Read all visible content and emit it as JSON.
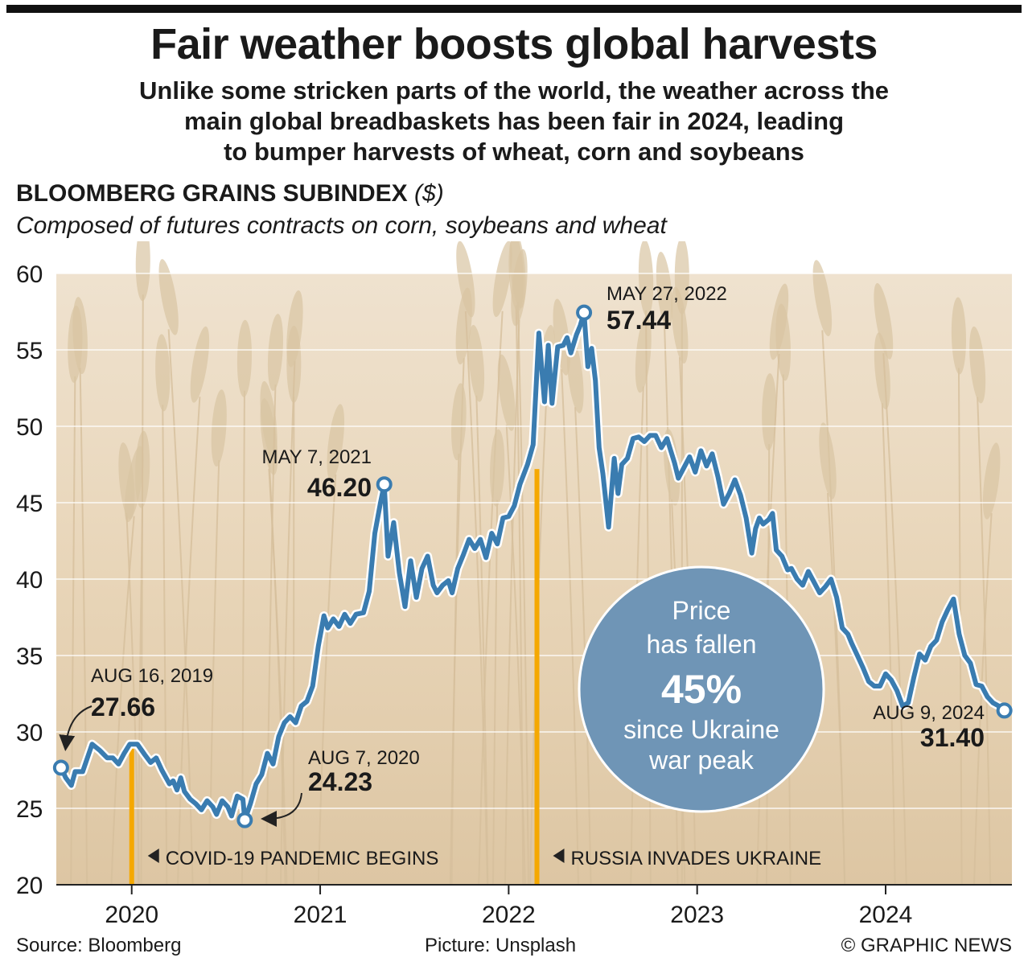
{
  "header": {
    "title": "Fair weather boosts global harvests",
    "subtitle_lines": [
      "Unlike some stricken parts of the world, the weather across the",
      "main global breadbaskets has been fair in 2024, leading",
      "to bumper harvests of wheat, corn and soybeans"
    ],
    "index_title": "BLOOMBERG GRAINS SUBINDEX",
    "index_unit": "($)",
    "index_subtitle": "Composed of futures contracts on corn, soybeans and wheat"
  },
  "footer": {
    "source": "Source: Bloomberg",
    "picture": "Picture: Unsplash",
    "credit": "© GRAPHIC NEWS"
  },
  "colors": {
    "line": "#3a7cb0",
    "event_bar": "#f5a800",
    "bubble": "#6f95b6",
    "background": "#e9d8bd"
  },
  "chart_data": {
    "type": "line",
    "grid": true,
    "ylim": [
      20,
      60
    ],
    "yticks": [
      20,
      25,
      30,
      35,
      40,
      45,
      50,
      55,
      60
    ],
    "xlim": [
      2019.6,
      2024.67
    ],
    "xticks": [
      {
        "x": 2020,
        "label": "2020"
      },
      {
        "x": 2021,
        "label": "2021"
      },
      {
        "x": 2022,
        "label": "2022"
      },
      {
        "x": 2023,
        "label": "2023"
      },
      {
        "x": 2024,
        "label": "2024"
      }
    ],
    "series": [
      {
        "points": [
          [
            2019.625,
            27.66
          ],
          [
            2019.65,
            27.0
          ],
          [
            2019.68,
            26.5
          ],
          [
            2019.7,
            27.4
          ],
          [
            2019.74,
            27.4
          ],
          [
            2019.79,
            29.2
          ],
          [
            2019.83,
            28.8
          ],
          [
            2019.87,
            28.3
          ],
          [
            2019.9,
            28.3
          ],
          [
            2019.93,
            27.9
          ],
          [
            2019.96,
            28.6
          ],
          [
            2019.99,
            29.2
          ],
          [
            2020.03,
            29.2
          ],
          [
            2020.07,
            28.5
          ],
          [
            2020.1,
            28.0
          ],
          [
            2020.13,
            28.3
          ],
          [
            2020.16,
            27.5
          ],
          [
            2020.2,
            26.6
          ],
          [
            2020.22,
            26.8
          ],
          [
            2020.24,
            26.2
          ],
          [
            2020.26,
            27.0
          ],
          [
            2020.28,
            26.1
          ],
          [
            2020.31,
            25.6
          ],
          [
            2020.34,
            25.3
          ],
          [
            2020.37,
            24.9
          ],
          [
            2020.4,
            25.5
          ],
          [
            2020.43,
            25.1
          ],
          [
            2020.45,
            24.6
          ],
          [
            2020.48,
            25.5
          ],
          [
            2020.51,
            25.1
          ],
          [
            2020.53,
            24.5
          ],
          [
            2020.56,
            25.8
          ],
          [
            2020.59,
            25.6
          ],
          [
            2020.6,
            24.23
          ],
          [
            2020.63,
            25.3
          ],
          [
            2020.66,
            26.6
          ],
          [
            2020.69,
            27.2
          ],
          [
            2020.72,
            28.6
          ],
          [
            2020.75,
            27.9
          ],
          [
            2020.78,
            29.7
          ],
          [
            2020.81,
            30.6
          ],
          [
            2020.84,
            31.0
          ],
          [
            2020.87,
            30.6
          ],
          [
            2020.9,
            31.7
          ],
          [
            2020.93,
            32.0
          ],
          [
            2020.96,
            33.0
          ],
          [
            2020.99,
            35.6
          ],
          [
            2021.02,
            37.6
          ],
          [
            2021.04,
            36.8
          ],
          [
            2021.07,
            37.4
          ],
          [
            2021.1,
            36.9
          ],
          [
            2021.13,
            37.7
          ],
          [
            2021.16,
            37.1
          ],
          [
            2021.19,
            37.7
          ],
          [
            2021.23,
            37.8
          ],
          [
            2021.26,
            39.2
          ],
          [
            2021.29,
            43.0
          ],
          [
            2021.32,
            45.0
          ],
          [
            2021.34,
            46.2
          ],
          [
            2021.36,
            41.5
          ],
          [
            2021.39,
            43.7
          ],
          [
            2021.42,
            40.4
          ],
          [
            2021.45,
            38.2
          ],
          [
            2021.48,
            41.2
          ],
          [
            2021.51,
            38.8
          ],
          [
            2021.54,
            40.7
          ],
          [
            2021.57,
            41.5
          ],
          [
            2021.6,
            39.6
          ],
          [
            2021.62,
            39.1
          ],
          [
            2021.65,
            39.6
          ],
          [
            2021.68,
            39.9
          ],
          [
            2021.7,
            39.1
          ],
          [
            2021.73,
            40.7
          ],
          [
            2021.76,
            41.6
          ],
          [
            2021.79,
            42.6
          ],
          [
            2021.82,
            42.0
          ],
          [
            2021.85,
            42.6
          ],
          [
            2021.88,
            41.4
          ],
          [
            2021.91,
            43.0
          ],
          [
            2021.94,
            42.3
          ],
          [
            2021.97,
            44.0
          ],
          [
            2022.0,
            44.1
          ],
          [
            2022.03,
            44.8
          ],
          [
            2022.06,
            46.2
          ],
          [
            2022.1,
            47.5
          ],
          [
            2022.13,
            48.8
          ],
          [
            2022.16,
            56.1
          ],
          [
            2022.19,
            51.6
          ],
          [
            2022.21,
            55.3
          ],
          [
            2022.23,
            51.5
          ],
          [
            2022.26,
            55.2
          ],
          [
            2022.29,
            55.3
          ],
          [
            2022.31,
            55.8
          ],
          [
            2022.33,
            54.8
          ],
          [
            2022.36,
            56.0
          ],
          [
            2022.38,
            56.6
          ],
          [
            2022.4,
            57.44
          ],
          [
            2022.42,
            53.9
          ],
          [
            2022.44,
            55.1
          ],
          [
            2022.46,
            53.0
          ],
          [
            2022.48,
            48.6
          ],
          [
            2022.5,
            46.9
          ],
          [
            2022.53,
            43.4
          ],
          [
            2022.56,
            47.9
          ],
          [
            2022.58,
            45.6
          ],
          [
            2022.6,
            47.5
          ],
          [
            2022.63,
            47.9
          ],
          [
            2022.66,
            49.2
          ],
          [
            2022.69,
            49.3
          ],
          [
            2022.72,
            49.0
          ],
          [
            2022.75,
            49.4
          ],
          [
            2022.78,
            49.4
          ],
          [
            2022.81,
            48.6
          ],
          [
            2022.84,
            49.2
          ],
          [
            2022.88,
            47.6
          ],
          [
            2022.9,
            46.6
          ],
          [
            2022.93,
            47.3
          ],
          [
            2022.96,
            48.0
          ],
          [
            2022.99,
            47.0
          ],
          [
            2023.02,
            48.4
          ],
          [
            2023.05,
            47.4
          ],
          [
            2023.08,
            48.2
          ],
          [
            2023.11,
            46.7
          ],
          [
            2023.14,
            44.9
          ],
          [
            2023.17,
            45.6
          ],
          [
            2023.2,
            46.5
          ],
          [
            2023.23,
            45.5
          ],
          [
            2023.26,
            44.0
          ],
          [
            2023.29,
            41.7
          ],
          [
            2023.31,
            43.3
          ],
          [
            2023.33,
            44.0
          ],
          [
            2023.35,
            43.6
          ],
          [
            2023.38,
            43.9
          ],
          [
            2023.4,
            44.3
          ],
          [
            2023.42,
            41.9
          ],
          [
            2023.45,
            41.5
          ],
          [
            2023.48,
            40.6
          ],
          [
            2023.5,
            40.7
          ],
          [
            2023.53,
            40.0
          ],
          [
            2023.56,
            39.6
          ],
          [
            2023.59,
            40.5
          ],
          [
            2023.62,
            39.8
          ],
          [
            2023.65,
            39.1
          ],
          [
            2023.68,
            39.5
          ],
          [
            2023.71,
            40.0
          ],
          [
            2023.74,
            38.8
          ],
          [
            2023.77,
            36.8
          ],
          [
            2023.8,
            36.4
          ],
          [
            2023.82,
            35.8
          ],
          [
            2023.85,
            35.0
          ],
          [
            2023.88,
            34.2
          ],
          [
            2023.91,
            33.3
          ],
          [
            2023.94,
            33.0
          ],
          [
            2023.97,
            33.0
          ],
          [
            2024.0,
            33.8
          ],
          [
            2024.03,
            33.4
          ],
          [
            2024.06,
            32.7
          ],
          [
            2024.09,
            31.7
          ],
          [
            2024.12,
            31.9
          ],
          [
            2024.15,
            33.6
          ],
          [
            2024.18,
            35.1
          ],
          [
            2024.21,
            34.7
          ],
          [
            2024.24,
            35.6
          ],
          [
            2024.27,
            36.0
          ],
          [
            2024.3,
            37.2
          ],
          [
            2024.33,
            38.0
          ],
          [
            2024.36,
            38.7
          ],
          [
            2024.39,
            36.4
          ],
          [
            2024.42,
            35.0
          ],
          [
            2024.45,
            34.5
          ],
          [
            2024.48,
            33.1
          ],
          [
            2024.51,
            33.0
          ],
          [
            2024.54,
            32.3
          ],
          [
            2024.57,
            31.9
          ],
          [
            2024.6,
            31.7
          ],
          [
            2024.63,
            31.4
          ]
        ]
      }
    ],
    "annotations": [
      {
        "id": "aug2019",
        "x": 2019.625,
        "y": 27.66,
        "date": "AUG 16, 2019",
        "value": "27.66"
      },
      {
        "id": "aug2020",
        "x": 2020.6,
        "y": 24.23,
        "date": "AUG 7, 2020",
        "value": "24.23"
      },
      {
        "id": "may2021",
        "x": 2021.34,
        "y": 46.2,
        "date": "MAY 7, 2021",
        "value": "46.20"
      },
      {
        "id": "may2022",
        "x": 2022.4,
        "y": 57.44,
        "date": "MAY 27, 2022",
        "value": "57.44"
      },
      {
        "id": "aug2024",
        "x": 2024.63,
        "y": 31.4,
        "date": "AUG 9, 2024",
        "value": "31.40"
      }
    ],
    "events": [
      {
        "x": 2020.0,
        "y": 29.2,
        "label": "COVID-19 PANDEMIC BEGINS"
      },
      {
        "x": 2022.15,
        "y": 47.2,
        "label": "RUSSIA INVADES UKRAINE"
      }
    ],
    "callout": {
      "lines": [
        "Price",
        "has fallen",
        "45%",
        "since Ukraine",
        "war peak"
      ]
    }
  }
}
